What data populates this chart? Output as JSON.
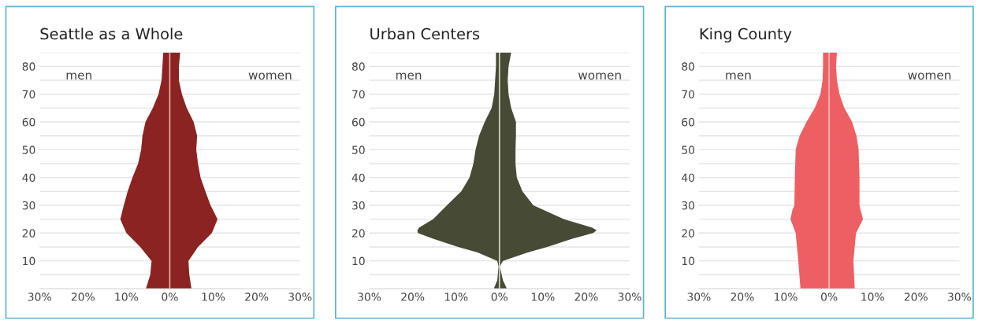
{
  "chart_data": [
    {
      "type": "area",
      "orientation": "horizontal",
      "title": "Seattle as a Whole",
      "x": [
        0,
        5,
        10,
        15,
        20,
        25,
        30,
        35,
        40,
        45,
        50,
        55,
        60,
        65,
        70,
        75,
        80,
        85
      ],
      "series": [
        {
          "color": "#8b2322",
          "values": [
            -5.5,
            -4.5,
            -4.2,
            -6.8,
            -10,
            -11.4,
            -10.6,
            -9.7,
            -8.6,
            -7.3,
            -6.6,
            -6.3,
            -5.6,
            -3.9,
            -2.6,
            -1.9,
            -1.7,
            -1.5
          ]
        },
        {
          "color": "#8b2322",
          "values": [
            5.0,
            4.5,
            4.3,
            6.5,
            9.7,
            11.0,
            9.4,
            8.2,
            7.1,
            6.5,
            6.1,
            6.3,
            5.5,
            3.9,
            2.8,
            2.1,
            2.1,
            2.4
          ]
        }
      ],
      "xlim": [
        -30,
        30
      ],
      "xticks": [
        {
          "value": -30,
          "label": "30%"
        },
        {
          "value": -20,
          "label": "20%"
        },
        {
          "value": -10,
          "label": "10%"
        },
        {
          "value": 0,
          "label": "0%"
        },
        {
          "value": 10,
          "label": "10%"
        },
        {
          "value": 20,
          "label": "20%"
        },
        {
          "value": 30,
          "label": "30%"
        }
      ],
      "ylim": [
        0,
        85
      ],
      "yticks": [
        {
          "value": 5,
          "label": null
        },
        10,
        {
          "value": 15,
          "label": null
        },
        20,
        {
          "value": 25,
          "label": null
        },
        30,
        {
          "value": 35,
          "label": null
        },
        40,
        {
          "value": 45,
          "label": null
        },
        50,
        {
          "value": 55,
          "label": null
        },
        60,
        {
          "value": 65,
          "label": null
        },
        70,
        {
          "value": 75,
          "label": null
        },
        80,
        {
          "value": 85,
          "label": null
        }
      ],
      "grid": "y",
      "ref_lines": [
        {
          "axis": "x",
          "value": 0,
          "color": "#e8b0a8"
        }
      ],
      "annotations": [
        "men",
        "women"
      ]
    },
    {
      "type": "area",
      "orientation": "horizontal",
      "title": "Urban Centers",
      "x": [
        0,
        3,
        8,
        10,
        13,
        15,
        18,
        20,
        21,
        22,
        25,
        30,
        35,
        40,
        45,
        50,
        55,
        60,
        65,
        70,
        75,
        80,
        85
      ],
      "series": [
        {
          "color": "#474a35",
          "values": [
            -1.3,
            -0.5,
            -0.2,
            -0.5,
            -5,
            -9.5,
            -15.3,
            -18.8,
            -18.9,
            -18.5,
            -15.3,
            -12.1,
            -8.8,
            -6.9,
            -6.0,
            -5.5,
            -4.7,
            -3.4,
            -1.8,
            -1.2,
            -1.0,
            -0.8,
            -0.8
          ]
        },
        {
          "color": "#474a35",
          "values": [
            1.7,
            0.8,
            0.1,
            0.8,
            6.5,
            11,
            16.8,
            21.6,
            22.4,
            21.3,
            14.9,
            7.8,
            5.3,
            4.0,
            3.7,
            3.7,
            3.8,
            3.8,
            2.7,
            2.1,
            1.9,
            2.1,
            2.7
          ]
        }
      ],
      "xlim": [
        -30,
        30
      ],
      "xticks": [
        {
          "value": -30,
          "label": "30%"
        },
        {
          "value": -20,
          "label": "20%"
        },
        {
          "value": -10,
          "label": "10%"
        },
        {
          "value": 0,
          "label": "0%"
        },
        {
          "value": 10,
          "label": "10%"
        },
        {
          "value": 20,
          "label": "20%"
        },
        {
          "value": 30,
          "label": "30%"
        }
      ],
      "ylim": [
        0,
        85
      ],
      "yticks": [
        {
          "value": 5,
          "label": null
        },
        10,
        {
          "value": 15,
          "label": null
        },
        20,
        {
          "value": 25,
          "label": null
        },
        30,
        {
          "value": 35,
          "label": null
        },
        40,
        {
          "value": 45,
          "label": null
        },
        50,
        {
          "value": 55,
          "label": null
        },
        60,
        {
          "value": 65,
          "label": null
        },
        70,
        {
          "value": 75,
          "label": null
        },
        80,
        {
          "value": 85,
          "label": null
        }
      ],
      "grid": "y",
      "ref_lines": [
        {
          "axis": "x",
          "value": 0,
          "color": "#d8d8c8"
        }
      ],
      "annotations": [
        "men",
        "women"
      ]
    },
    {
      "type": "area",
      "orientation": "horizontal",
      "title": "King County",
      "x": [
        0,
        10,
        20,
        25,
        28,
        30,
        40,
        50,
        55,
        60,
        65,
        70,
        75,
        80,
        85
      ],
      "series": [
        {
          "color": "#ee5f64",
          "values": [
            -6.6,
            -7.1,
            -7.7,
            -8.9,
            -8.5,
            -8.0,
            -7.9,
            -7.7,
            -6.8,
            -5.2,
            -3.3,
            -2.0,
            -1.5,
            -1.4,
            -1.4
          ]
        },
        {
          "color": "#ee5f64",
          "values": [
            5.9,
            5.6,
            6.2,
            7.8,
            7.3,
            7.0,
            7.0,
            6.8,
            6.3,
            5.3,
            3.5,
            2.4,
            1.8,
            1.6,
            1.8
          ]
        }
      ],
      "xlim": [
        -30,
        30
      ],
      "xticks": [
        {
          "value": -30,
          "label": "30%"
        },
        {
          "value": -20,
          "label": "20%"
        },
        {
          "value": -10,
          "label": "10%"
        },
        {
          "value": 0,
          "label": "0%"
        },
        {
          "value": 10,
          "label": "10%"
        },
        {
          "value": 20,
          "label": "20%"
        },
        {
          "value": 30,
          "label": "30%"
        }
      ],
      "ylim": [
        0,
        85
      ],
      "yticks": [
        {
          "value": 5,
          "label": null
        },
        10,
        {
          "value": 15,
          "label": null
        },
        20,
        {
          "value": 25,
          "label": null
        },
        30,
        {
          "value": 35,
          "label": null
        },
        40,
        {
          "value": 45,
          "label": null
        },
        50,
        {
          "value": 55,
          "label": null
        },
        60,
        {
          "value": 65,
          "label": null
        },
        70,
        {
          "value": 75,
          "label": null
        },
        80,
        {
          "value": 85,
          "label": null
        }
      ],
      "grid": "y",
      "ref_lines": [
        {
          "axis": "x",
          "value": 0,
          "color": "#f8b8b8"
        }
      ],
      "annotations": [
        "men",
        "women"
      ]
    }
  ]
}
